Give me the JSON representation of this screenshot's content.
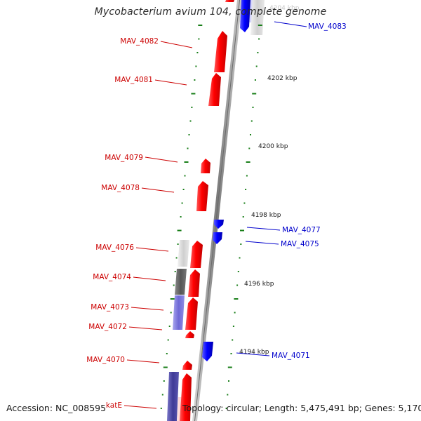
{
  "title": "Mycobacterium avium 104, complete genome",
  "footer": {
    "accession": "Accession: NC_008595",
    "stats": "Topology: circular; Length: 5,475,491 bp; Genes: 5,170"
  },
  "colors": {
    "forward_gene": "#ff0000",
    "reverse_gene": "#0000ff",
    "forward_label": "#cc0000",
    "reverse_label": "#0000cc",
    "tick": "#1a7f1a",
    "backbone": "#8a8a8a"
  },
  "scale_labels": [
    "4204 kbp",
    "4202 kbp",
    "4200 kbp",
    "4198 kbp",
    "4196 kbp",
    "4194 kbp"
  ],
  "forward_labels": [
    "MAV_4082",
    "MAV_4081",
    "MAV_4079",
    "MAV_4078",
    "MAV_4076",
    "MAV_4074",
    "MAV_4073",
    "MAV_4072",
    "MAV_4070",
    "katE"
  ],
  "reverse_labels": [
    "MAV_4083",
    "MAV_4077",
    "MAV_4075",
    "MAV_4071"
  ]
}
